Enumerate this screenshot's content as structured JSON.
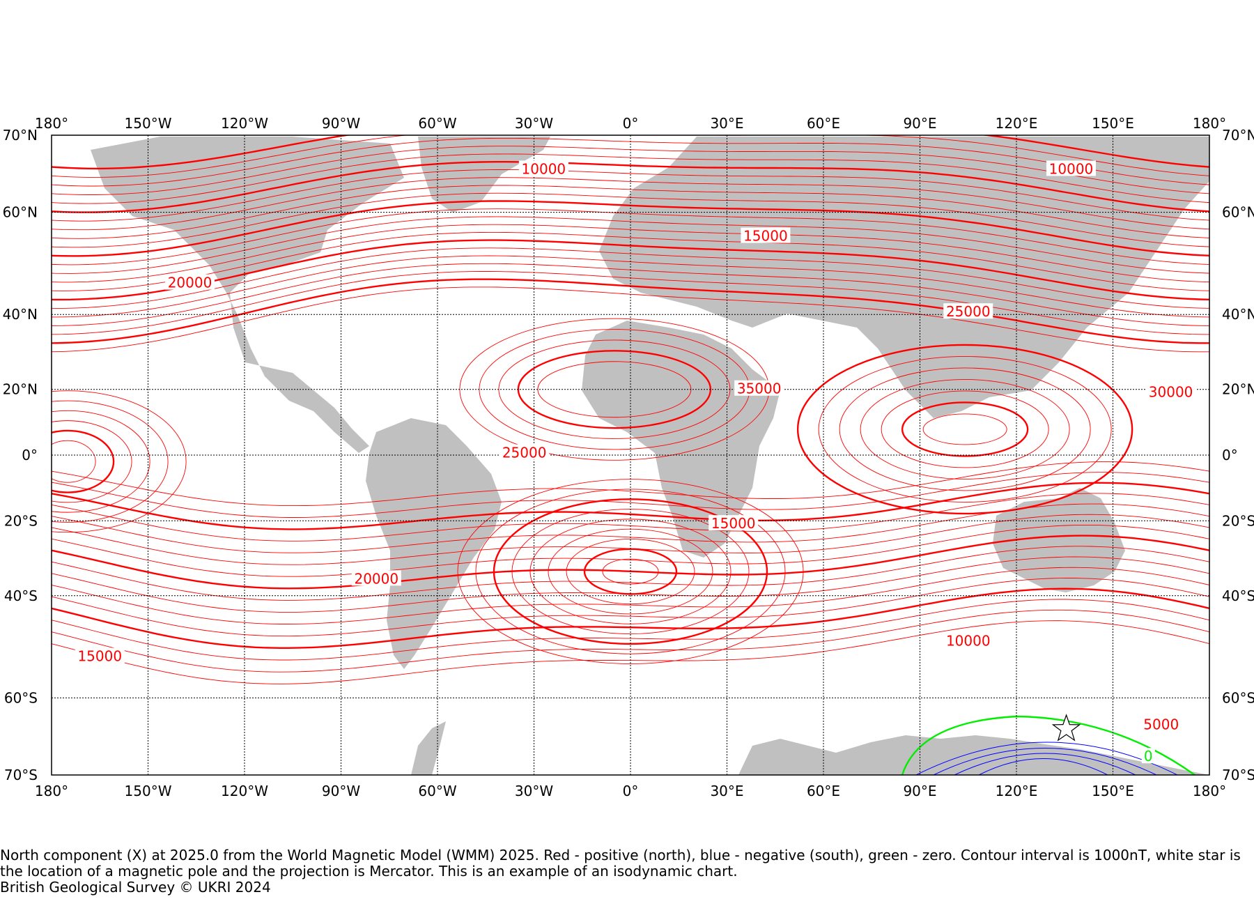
{
  "map": {
    "projection": "Mercator",
    "extent": {
      "lon": [
        -180,
        180
      ],
      "lat": [
        -70,
        70
      ]
    },
    "lon_ticks": [
      {
        "lon": -180,
        "label": "180°"
      },
      {
        "lon": -150,
        "label": "150°W"
      },
      {
        "lon": -120,
        "label": "120°W"
      },
      {
        "lon": -90,
        "label": "90°W"
      },
      {
        "lon": -60,
        "label": "60°W"
      },
      {
        "lon": -30,
        "label": "30°W"
      },
      {
        "lon": 0,
        "label": "0°"
      },
      {
        "lon": 30,
        "label": "30°E"
      },
      {
        "lon": 60,
        "label": "60°E"
      },
      {
        "lon": 90,
        "label": "90°E"
      },
      {
        "lon": 120,
        "label": "120°E"
      },
      {
        "lon": 150,
        "label": "150°E"
      },
      {
        "lon": 180,
        "label": "180°"
      }
    ],
    "lat_ticks": [
      {
        "lat": 70,
        "label": "70°N"
      },
      {
        "lat": 60,
        "label": "60°N"
      },
      {
        "lat": 40,
        "label": "40°N"
      },
      {
        "lat": 20,
        "label": "20°N"
      },
      {
        "lat": 0,
        "label": "0°"
      },
      {
        "lat": -20,
        "label": "20°S"
      },
      {
        "lat": -40,
        "label": "40°S"
      },
      {
        "lat": -60,
        "label": "60°S"
      },
      {
        "lat": -70,
        "label": "70°S"
      }
    ],
    "colors": {
      "positive": "#ff0000",
      "negative": "#0000ff",
      "zero": "#00ee00",
      "land": "#c0c0c0",
      "grid": "#000000",
      "pole_star": "#ffffff"
    },
    "contour_labels": [
      {
        "text": "10000",
        "lon": -27,
        "lat": 66
      },
      {
        "text": "10000",
        "lon": 137,
        "lat": 66
      },
      {
        "text": "15000",
        "lon": 42,
        "lat": 56
      },
      {
        "text": "20000",
        "lon": -137,
        "lat": 47
      },
      {
        "text": "25000",
        "lon": 105,
        "lat": 40.5
      },
      {
        "text": "35000",
        "lon": 40,
        "lat": 20
      },
      {
        "text": "30000",
        "lon": 168,
        "lat": 19
      },
      {
        "text": "25000",
        "lon": -33,
        "lat": 0.5
      },
      {
        "text": "15000",
        "lon": 32,
        "lat": -21
      },
      {
        "text": "20000",
        "lon": -79,
        "lat": -36
      },
      {
        "text": "10000",
        "lon": 105,
        "lat": -50
      },
      {
        "text": "15000",
        "lon": -165,
        "lat": -53
      },
      {
        "text": "5000",
        "lon": 165,
        "lat": -64
      },
      {
        "text": "0",
        "lon": 161,
        "lat": -68
      }
    ],
    "magnetic_pole": {
      "lon": 135.5,
      "lat": -64.5
    }
  },
  "caption": {
    "line1": "North component (X) at 2025.0 from the World Magnetic Model (WMM) 2025. Red - positive (north), blue - negative (south), green - zero. Contour interval is 1000nT, white star is the location of a magnetic pole and the projection is Mercator. This is an example of an isodynamic chart.",
    "line2": "British Geological Survey © UKRI 2024"
  }
}
